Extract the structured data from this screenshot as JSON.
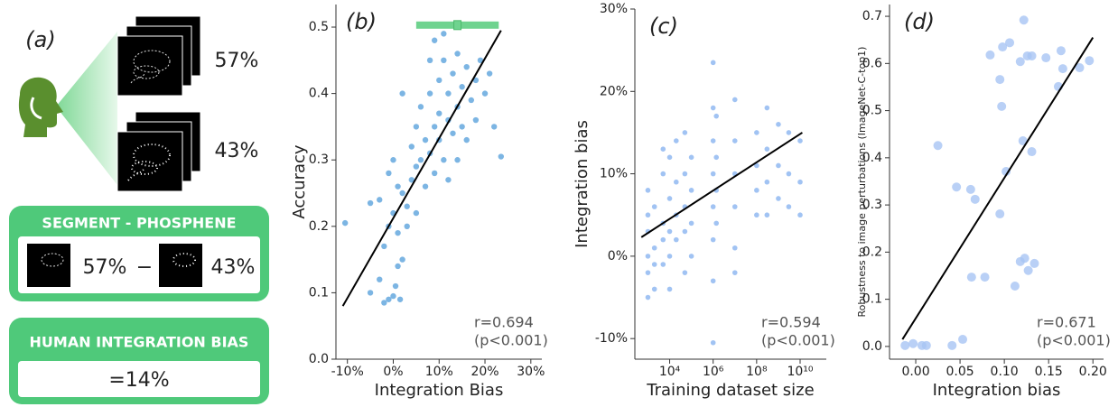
{
  "panel_a": {
    "label": "(a)",
    "stack_top_pct": "57%",
    "stack_bottom_pct": "43%",
    "box1_title": "SEGMENT - PHOSPHENE",
    "box1_left": "57%",
    "box1_op": "−",
    "box1_right": "43%",
    "box2_title": "HUMAN INTEGRATION BIAS",
    "box2_value": "=14%"
  },
  "chart_data": [
    {
      "type": "scatter",
      "panel": "(b)",
      "x_label": "Integration Bias",
      "y_label": "Accuracy",
      "annotation": [
        "r=0.694",
        "(p<0.001)"
      ],
      "color": "#5ba3dc",
      "xlim": [
        -12.5,
        32.4
      ],
      "ylim": [
        0,
        0.534
      ],
      "xticks": [
        {
          "value": -10,
          "label": "-10%"
        },
        {
          "value": 0,
          "label": "0%"
        },
        {
          "value": 10,
          "label": "10%"
        },
        {
          "value": 20,
          "label": "20%"
        },
        {
          "value": 30,
          "label": "30%"
        }
      ],
      "yticks": [
        {
          "value": 0,
          "label": "0.0"
        },
        0.1,
        0.2,
        0.3,
        0.4,
        0.5
      ],
      "x": [
        -10.5,
        -5,
        -3,
        -2,
        -1,
        0,
        0.5,
        1,
        2,
        1.5,
        -2,
        -1,
        0,
        1,
        2,
        -3,
        -1,
        0,
        1,
        3,
        3,
        4,
        4,
        5,
        5,
        5,
        6,
        6,
        7,
        7,
        8,
        8,
        8,
        9,
        9,
        9,
        10,
        10,
        10,
        11,
        11,
        11,
        12,
        12,
        12,
        13,
        13,
        14,
        14,
        14,
        15,
        15,
        16,
        16,
        17,
        18,
        18,
        19,
        20,
        21,
        22,
        23.5,
        2,
        -5
      ],
      "y": [
        0.205,
        0.1,
        0.12,
        0.085,
        0.09,
        0.095,
        0.11,
        0.14,
        0.15,
        0.09,
        0.17,
        0.2,
        0.22,
        0.19,
        0.25,
        0.24,
        0.28,
        0.3,
        0.26,
        0.2,
        0.23,
        0.27,
        0.32,
        0.29,
        0.35,
        0.22,
        0.3,
        0.38,
        0.33,
        0.26,
        0.4,
        0.31,
        0.45,
        0.35,
        0.28,
        0.48,
        0.33,
        0.42,
        0.37,
        0.3,
        0.45,
        0.49,
        0.36,
        0.4,
        0.27,
        0.34,
        0.43,
        0.38,
        0.46,
        0.3,
        0.41,
        0.35,
        0.44,
        0.33,
        0.39,
        0.42,
        0.36,
        0.45,
        0.4,
        0.43,
        0.35,
        0.305,
        0.4,
        0.235
      ],
      "fit_line": {
        "x": [
          -11,
          23.5
        ],
        "y": [
          0.08,
          0.495
        ]
      },
      "human_bias_range": [
        5,
        23
      ],
      "human_bias": 14,
      "human_bias_level": 0.503,
      "human_color": "#6fd38f"
    },
    {
      "type": "scatter",
      "panel": "(c)",
      "x_label": "Training dataset size",
      "y_label": "Integration bias",
      "annotation": [
        "r=0.594",
        "(p<0.001)"
      ],
      "color": "#8ab4f0",
      "log_x": true,
      "xlim": [
        251,
        160000000000
      ],
      "ylim": [
        -12.5,
        30
      ],
      "xticks": [
        {
          "value": 10000,
          "label": "10⁴"
        },
        {
          "value": 1000000,
          "label": "10⁶"
        },
        {
          "value": 100000000,
          "label": "10⁸"
        },
        {
          "value": 10000000000,
          "label": "10¹⁰"
        }
      ],
      "yticks": [
        {
          "value": -10,
          "label": "-10%"
        },
        {
          "value": 0,
          "label": "0%"
        },
        {
          "value": 10,
          "label": "10%"
        },
        {
          "value": 20,
          "label": "20%"
        },
        {
          "value": 30,
          "label": "30%"
        }
      ],
      "x": [
        1000,
        1000,
        1000,
        1000,
        1000,
        1000,
        2000,
        2000,
        2000,
        2000,
        5000,
        5000,
        5000,
        5000,
        5000,
        10000,
        10000,
        10000,
        10000,
        10000,
        20000,
        20000,
        20000,
        20000,
        50000,
        50000,
        50000,
        50000,
        50000,
        100000,
        100000,
        100000,
        100000,
        1000000,
        1000000,
        1000000,
        1000000,
        1000000,
        1000000,
        1000000,
        1000000,
        1400000,
        1400000,
        1400000,
        1400000,
        10000000,
        10000000,
        10000000,
        10000000,
        10000000,
        10000000,
        100000000,
        100000000,
        100000000,
        100000000,
        300000000,
        300000000,
        300000000,
        300000000,
        1000000000,
        1000000000,
        1000000000,
        3000000000,
        3000000000,
        3000000000,
        10000000000,
        10000000000,
        10000000000
      ],
      "y": [
        8,
        3,
        0,
        -2,
        -5,
        5,
        6,
        1,
        -1,
        -4,
        10,
        4,
        2,
        -1,
        13,
        12,
        7,
        3,
        0,
        -4,
        14,
        9,
        5,
        2,
        15,
        10,
        6,
        3,
        -2,
        12,
        8,
        4,
        0,
        23.5,
        18,
        14,
        10,
        6,
        2,
        -3,
        -10.5,
        17,
        12,
        8,
        4,
        19,
        14,
        10,
        6,
        1,
        -2,
        15,
        11,
        8,
        5,
        18,
        13,
        9,
        5,
        16,
        11,
        7,
        15,
        10,
        6,
        14,
        9,
        5
      ],
      "fit_line": {
        "x": [
          500,
          12600000000
        ],
        "y": [
          2.3,
          15
        ]
      }
    },
    {
      "type": "scatter",
      "panel": "(d)",
      "x_label": "Integration bias",
      "y_label": "Robustness to image perturbations (ImageNet-C-top1)",
      "annotation": [
        "r=0.671",
        "(p<0.001)"
      ],
      "color": "#a8c4f4",
      "xlim": [
        -0.0296,
        0.212
      ],
      "ylim": [
        -0.027,
        0.725
      ],
      "xticks": [
        {
          "value": 0,
          "label": "0.00"
        },
        0.05,
        {
          "value": 0.1,
          "label": "0.10"
        },
        0.15,
        {
          "value": 0.2,
          "label": "0.20"
        }
      ],
      "yticks": [
        {
          "value": 0,
          "label": "0.0"
        },
        0.1,
        0.2,
        0.3,
        0.4,
        0.5,
        0.6,
        0.7
      ],
      "x": [
        -0.012,
        -0.003,
        0.007,
        0.012,
        0.041,
        0.053,
        0.025,
        0.046,
        0.062,
        0.067,
        0.063,
        0.078,
        0.084,
        0.095,
        0.097,
        0.095,
        0.098,
        0.106,
        0.102,
        0.118,
        0.122,
        0.126,
        0.121,
        0.131,
        0.118,
        0.123,
        0.127,
        0.112,
        0.134,
        0.131,
        0.147,
        0.166,
        0.164,
        0.161,
        0.185,
        0.196
      ],
      "y": [
        0.002,
        0.006,
        0.002,
        0.002,
        0.002,
        0.015,
        0.426,
        0.338,
        0.333,
        0.312,
        0.147,
        0.147,
        0.618,
        0.566,
        0.509,
        0.281,
        0.635,
        0.644,
        0.371,
        0.604,
        0.692,
        0.616,
        0.436,
        0.413,
        0.18,
        0.187,
        0.161,
        0.128,
        0.176,
        0.616,
        0.612,
        0.589,
        0.627,
        0.551,
        0.591,
        0.606
      ],
      "fit_line": {
        "x": [
          -0.015,
          0.2
        ],
        "y": [
          0.015,
          0.655
        ]
      }
    }
  ]
}
